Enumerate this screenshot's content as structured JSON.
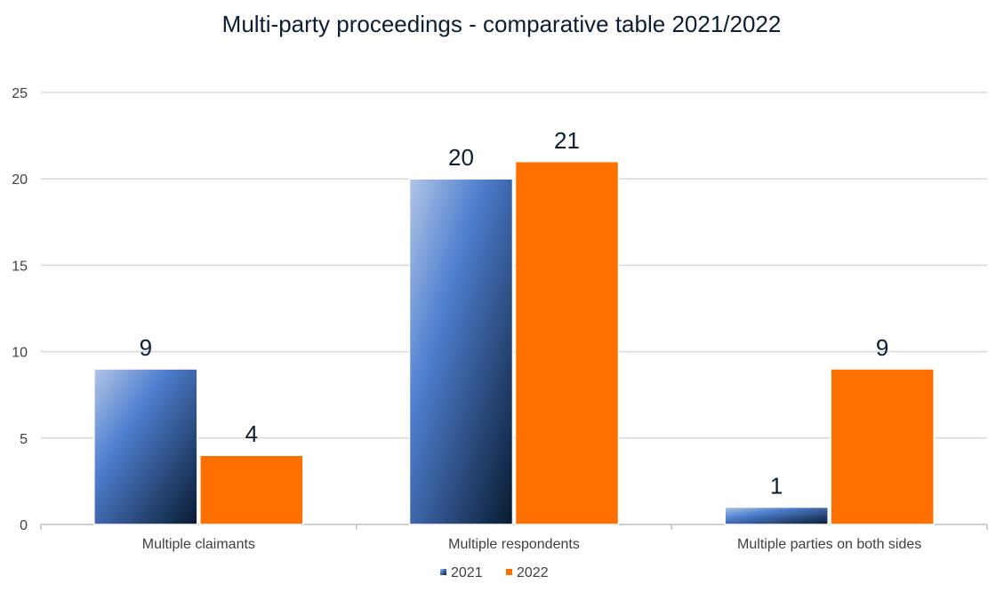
{
  "chart_data": {
    "type": "bar",
    "title": "Multi-party proceedings - comparative table 2021/2022",
    "xlabel": "",
    "ylabel": "",
    "categories": [
      "Multiple claimants",
      "Multiple respondents",
      "Multiple parties on both sides"
    ],
    "series": [
      {
        "name": "2021",
        "values": [
          9,
          20,
          1
        ],
        "color": "#4472c4"
      },
      {
        "name": "2022",
        "values": [
          4,
          21,
          9
        ],
        "color": "#ff7000"
      }
    ],
    "ylim": [
      0,
      25
    ],
    "yticks": [
      0,
      5,
      10,
      15,
      20,
      25
    ],
    "ytick_labels": [
      "0",
      "5",
      "10",
      "15",
      "20",
      "25"
    ],
    "data_labels": true,
    "grid": true,
    "legend_position": "bottom"
  }
}
